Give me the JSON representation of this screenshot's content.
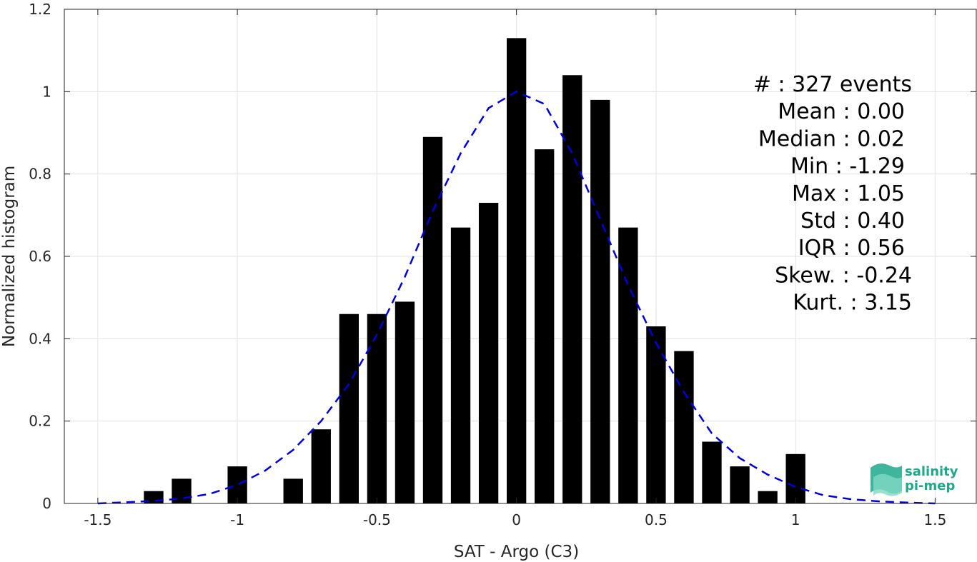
{
  "chart_data": {
    "type": "bar",
    "xlabel": "SAT - Argo (C3)",
    "ylabel": "Normalized histogram",
    "xlim": [
      -1.62,
      1.65
    ],
    "ylim": [
      0,
      1.2
    ],
    "xticks": [
      -1.5,
      -1,
      -0.5,
      0,
      0.5,
      1,
      1.5
    ],
    "xtick_labels": [
      "-1.5",
      "-1",
      "-0.5",
      "0",
      "0.5",
      "1",
      "1.5"
    ],
    "yticks": [
      0,
      0.2,
      0.4,
      0.6,
      0.8,
      1,
      1.2
    ],
    "ytick_labels": [
      "0",
      "0.2",
      "0.4",
      "0.6",
      "0.8",
      "1",
      "1.2"
    ],
    "grid": true,
    "bar_width": 0.07,
    "bar_color": "#000000",
    "curve_color": "#0000e0",
    "bars": [
      {
        "x": -1.3,
        "y": 0.03
      },
      {
        "x": -1.2,
        "y": 0.06
      },
      {
        "x": -1.0,
        "y": 0.09
      },
      {
        "x": -0.8,
        "y": 0.06
      },
      {
        "x": -0.7,
        "y": 0.18
      },
      {
        "x": -0.6,
        "y": 0.46
      },
      {
        "x": -0.5,
        "y": 0.46
      },
      {
        "x": -0.4,
        "y": 0.49
      },
      {
        "x": -0.3,
        "y": 0.89
      },
      {
        "x": -0.2,
        "y": 0.67
      },
      {
        "x": -0.1,
        "y": 0.73
      },
      {
        "x": 0.0,
        "y": 1.13
      },
      {
        "x": 0.1,
        "y": 0.86
      },
      {
        "x": 0.2,
        "y": 1.04
      },
      {
        "x": 0.3,
        "y": 0.98
      },
      {
        "x": 0.4,
        "y": 0.67
      },
      {
        "x": 0.5,
        "y": 0.43
      },
      {
        "x": 0.6,
        "y": 0.37
      },
      {
        "x": 0.7,
        "y": 0.15
      },
      {
        "x": 0.8,
        "y": 0.09
      },
      {
        "x": 0.9,
        "y": 0.03
      },
      {
        "x": 1.0,
        "y": 0.12
      }
    ],
    "fit_curve": {
      "style": "dashed",
      "x": [
        -1.5,
        -1.4,
        -1.3,
        -1.2,
        -1.1,
        -1.0,
        -0.9,
        -0.8,
        -0.7,
        -0.6,
        -0.5,
        -0.4,
        -0.3,
        -0.2,
        -0.1,
        0.0,
        0.1,
        0.2,
        0.3,
        0.4,
        0.5,
        0.6,
        0.7,
        0.8,
        0.9,
        1.0,
        1.1,
        1.2,
        1.3,
        1.4,
        1.5
      ],
      "y": [
        0.0,
        0.003,
        0.006,
        0.012,
        0.023,
        0.045,
        0.08,
        0.13,
        0.2,
        0.29,
        0.41,
        0.55,
        0.71,
        0.85,
        0.96,
        1.0,
        0.97,
        0.85,
        0.69,
        0.53,
        0.39,
        0.27,
        0.17,
        0.11,
        0.07,
        0.04,
        0.02,
        0.01,
        0.005,
        0.002,
        0.0
      ]
    },
    "annotation": [
      "#  : 327 events",
      "Mean : 0.00",
      "Median : 0.02",
      "Min : -1.29",
      "Max : 1.05",
      "Std : 0.40",
      "IQR : 0.56",
      "Skew. : -0.24",
      "Kurt. : 3.15"
    ]
  },
  "logo": {
    "line1": "salinity",
    "line2": "pi-mep",
    "color": "#1fa88c"
  }
}
